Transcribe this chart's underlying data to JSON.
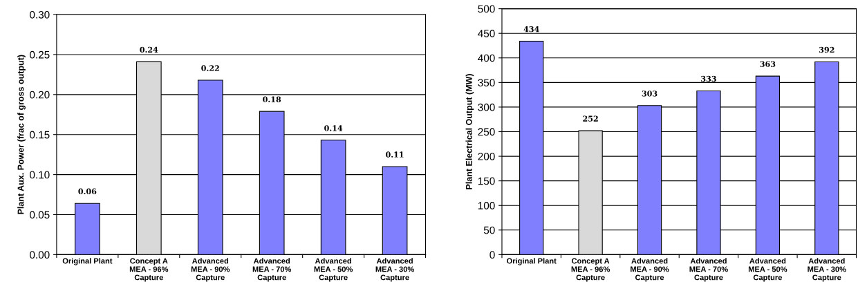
{
  "chart_data": [
    {
      "type": "bar",
      "ylabel": "Plant Aux. Power (frac of gross output)",
      "categories": [
        "Original Plant",
        "Concept A\nMEA - 96%\nCapture",
        "Advanced\nMEA - 90%\nCapture",
        "Advanced\nMEA - 70%\nCapture",
        "Advanced\nMEA - 50%\nCapture",
        "Advanced\nMEA - 30%\nCapture"
      ],
      "values": [
        0.064,
        0.241,
        0.218,
        0.179,
        0.143,
        0.11
      ],
      "colors": [
        "#8080ff",
        "#d9d9d9",
        "#8080ff",
        "#8080ff",
        "#8080ff",
        "#8080ff"
      ],
      "value_labels": [
        "0.06",
        "0.24",
        "0.22",
        "0.18",
        "0.14",
        "0.11"
      ],
      "ylim": [
        0,
        0.3
      ],
      "yticks": [
        {
          "value": 0,
          "label": "0.00"
        },
        {
          "value": 0.05,
          "label": "0.05"
        },
        {
          "value": 0.1,
          "label": "0.10"
        },
        {
          "value": 0.15,
          "label": "0.15"
        },
        {
          "value": 0.2,
          "label": "0.20"
        },
        {
          "value": 0.25,
          "label": "0.25"
        },
        {
          "value": 0.3,
          "label": "0.30"
        }
      ],
      "grid": "y"
    },
    {
      "type": "bar",
      "ylabel": "Plant Electrical Output (MW)",
      "categories": [
        "Original Plant",
        "Concept A\nMEA - 96%\nCapture",
        "Advanced\nMEA - 90%\nCapture",
        "Advanced\nMEA - 70%\nCapture",
        "Advanced\nMEA - 50%\nCapture",
        "Advanced\nMEA - 30%\nCapture"
      ],
      "values": [
        434,
        252,
        303,
        333,
        363,
        392
      ],
      "colors": [
        "#8080ff",
        "#d9d9d9",
        "#8080ff",
        "#8080ff",
        "#8080ff",
        "#8080ff"
      ],
      "data_labels": true,
      "ylim": [
        0,
        500
      ],
      "yticks": [
        0,
        50,
        100,
        150,
        200,
        250,
        300,
        350,
        400,
        450,
        500
      ],
      "grid": "y"
    }
  ]
}
